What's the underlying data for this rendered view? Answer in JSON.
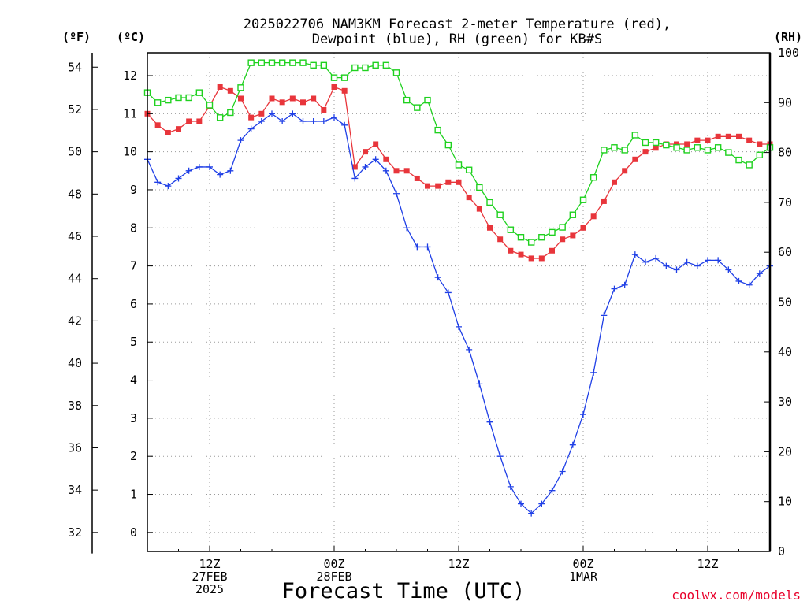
{
  "chart_data": {
    "type": "line",
    "title_lines": [
      "2025022706 NAM3KM Forecast 2-meter Temperature (red),",
      "Dewpoint (blue), RH (green) for KB#S"
    ],
    "xlabel": "Forecast Time (UTC)",
    "credit": "coolwx.com/models",
    "units": {
      "fahrenheit": "(ºF)",
      "celsius": "(ºC)",
      "rh": "(RH)"
    },
    "x_start_hour_utc": 6,
    "x_range_hours": [
      0,
      60
    ],
    "x_ticks": [
      {
        "hour": 6,
        "lines": [
          "12Z",
          "27FEB",
          "2025"
        ]
      },
      {
        "hour": 18,
        "lines": [
          "00Z",
          "28FEB"
        ]
      },
      {
        "hour": 30,
        "lines": [
          "12Z"
        ]
      },
      {
        "hour": 42,
        "lines": [
          "00Z",
          "1MAR"
        ]
      },
      {
        "hour": 54,
        "lines": [
          "12Z"
        ]
      }
    ],
    "celsius_axis": {
      "range": [
        -0.5,
        12.6
      ],
      "ticks": [
        0,
        1,
        2,
        3,
        4,
        5,
        6,
        7,
        8,
        9,
        10,
        11,
        12
      ]
    },
    "fahrenheit_axis": {
      "ticks": [
        32,
        34,
        36,
        38,
        40,
        42,
        44,
        46,
        48,
        50,
        52,
        54
      ]
    },
    "rh_axis": {
      "range": [
        0,
        100
      ],
      "ticks": [
        0,
        10,
        20,
        30,
        40,
        50,
        60,
        70,
        80,
        90,
        100
      ]
    },
    "grid": true,
    "series": [
      {
        "name": "Temperature",
        "axis": "celsius",
        "color": "#e8353b",
        "marker": "filled-square",
        "x": [
          0,
          1,
          2,
          3,
          4,
          5,
          6,
          7,
          8,
          9,
          10,
          11,
          12,
          13,
          14,
          15,
          16,
          17,
          18,
          19,
          20,
          21,
          22,
          23,
          24,
          25,
          26,
          27,
          28,
          29,
          30,
          31,
          32,
          33,
          34,
          35,
          36,
          37,
          38,
          39,
          40,
          41,
          42,
          43,
          44,
          45,
          46,
          47,
          48,
          49,
          50,
          51,
          52,
          53,
          54,
          55,
          56,
          57,
          58,
          59,
          60
        ],
        "values": [
          11.0,
          10.7,
          10.5,
          10.6,
          10.8,
          10.8,
          11.2,
          11.7,
          11.6,
          11.4,
          10.9,
          11.0,
          11.4,
          11.3,
          11.4,
          11.3,
          11.4,
          11.1,
          11.7,
          11.6,
          9.6,
          10.0,
          10.2,
          9.8,
          9.5,
          9.5,
          9.3,
          9.1,
          9.1,
          9.2,
          9.2,
          8.8,
          8.5,
          8.0,
          7.7,
          7.4,
          7.3,
          7.2,
          7.2,
          7.4,
          7.7,
          7.8,
          8.0,
          8.3,
          8.7,
          9.2,
          9.5,
          9.8,
          10.0,
          10.1,
          10.2,
          10.2,
          10.2,
          10.3,
          10.3,
          10.4,
          10.4,
          10.4,
          10.3,
          10.2,
          10.2
        ]
      },
      {
        "name": "Dewpoint",
        "axis": "celsius",
        "color": "#1f3fe6",
        "marker": "plus",
        "x": [
          0,
          1,
          2,
          3,
          4,
          5,
          6,
          7,
          8,
          9,
          10,
          11,
          12,
          13,
          14,
          15,
          16,
          17,
          18,
          19,
          20,
          21,
          22,
          23,
          24,
          25,
          26,
          27,
          28,
          29,
          30,
          31,
          32,
          33,
          34,
          35,
          36,
          37,
          38,
          39,
          40,
          41,
          42,
          43,
          44,
          45,
          46,
          47,
          48,
          49,
          50,
          51,
          52,
          53,
          54,
          55,
          56,
          57,
          58,
          59,
          60
        ],
        "values": [
          9.8,
          9.2,
          9.1,
          9.3,
          9.5,
          9.6,
          9.6,
          9.4,
          9.5,
          10.3,
          10.6,
          10.8,
          11.0,
          10.8,
          11.0,
          10.8,
          10.8,
          10.8,
          10.9,
          10.7,
          9.3,
          9.6,
          9.8,
          9.5,
          8.9,
          8.0,
          7.5,
          7.5,
          6.7,
          6.3,
          5.4,
          4.8,
          3.9,
          2.9,
          2.0,
          1.2,
          0.75,
          0.5,
          0.75,
          1.1,
          1.6,
          2.3,
          3.1,
          4.2,
          5.7,
          6.4,
          6.5,
          7.3,
          7.1,
          7.2,
          7.0,
          6.9,
          7.1,
          7.0,
          7.15,
          7.15,
          6.9,
          6.6,
          6.5,
          6.8,
          7.0
        ]
      },
      {
        "name": "RH",
        "axis": "rh",
        "color": "#1fd11f",
        "marker": "open-square",
        "x": [
          0,
          1,
          2,
          3,
          4,
          5,
          6,
          7,
          8,
          9,
          10,
          11,
          12,
          13,
          14,
          15,
          16,
          17,
          18,
          19,
          20,
          21,
          22,
          23,
          24,
          25,
          26,
          27,
          28,
          29,
          30,
          31,
          32,
          33,
          34,
          35,
          36,
          37,
          38,
          39,
          40,
          41,
          42,
          43,
          44,
          45,
          46,
          47,
          48,
          49,
          50,
          51,
          52,
          53,
          54,
          55,
          56,
          57,
          58,
          59,
          60
        ],
        "values": [
          92,
          90,
          90.5,
          91,
          91,
          92,
          89.5,
          87,
          88,
          93,
          98,
          98,
          98,
          98,
          98,
          98,
          97.5,
          97.5,
          95,
          95,
          97,
          97,
          97.5,
          97.5,
          96,
          90.5,
          89,
          90.5,
          84.5,
          81.5,
          77.5,
          76.5,
          73,
          70,
          67.5,
          64.5,
          63,
          62,
          63,
          64,
          65,
          67.5,
          70.5,
          75,
          80.5,
          81,
          80.5,
          83.5,
          82,
          82,
          81.5,
          81,
          80.5,
          81,
          80.5,
          81,
          80,
          78.5,
          77.5,
          79.5,
          81
        ]
      }
    ]
  }
}
